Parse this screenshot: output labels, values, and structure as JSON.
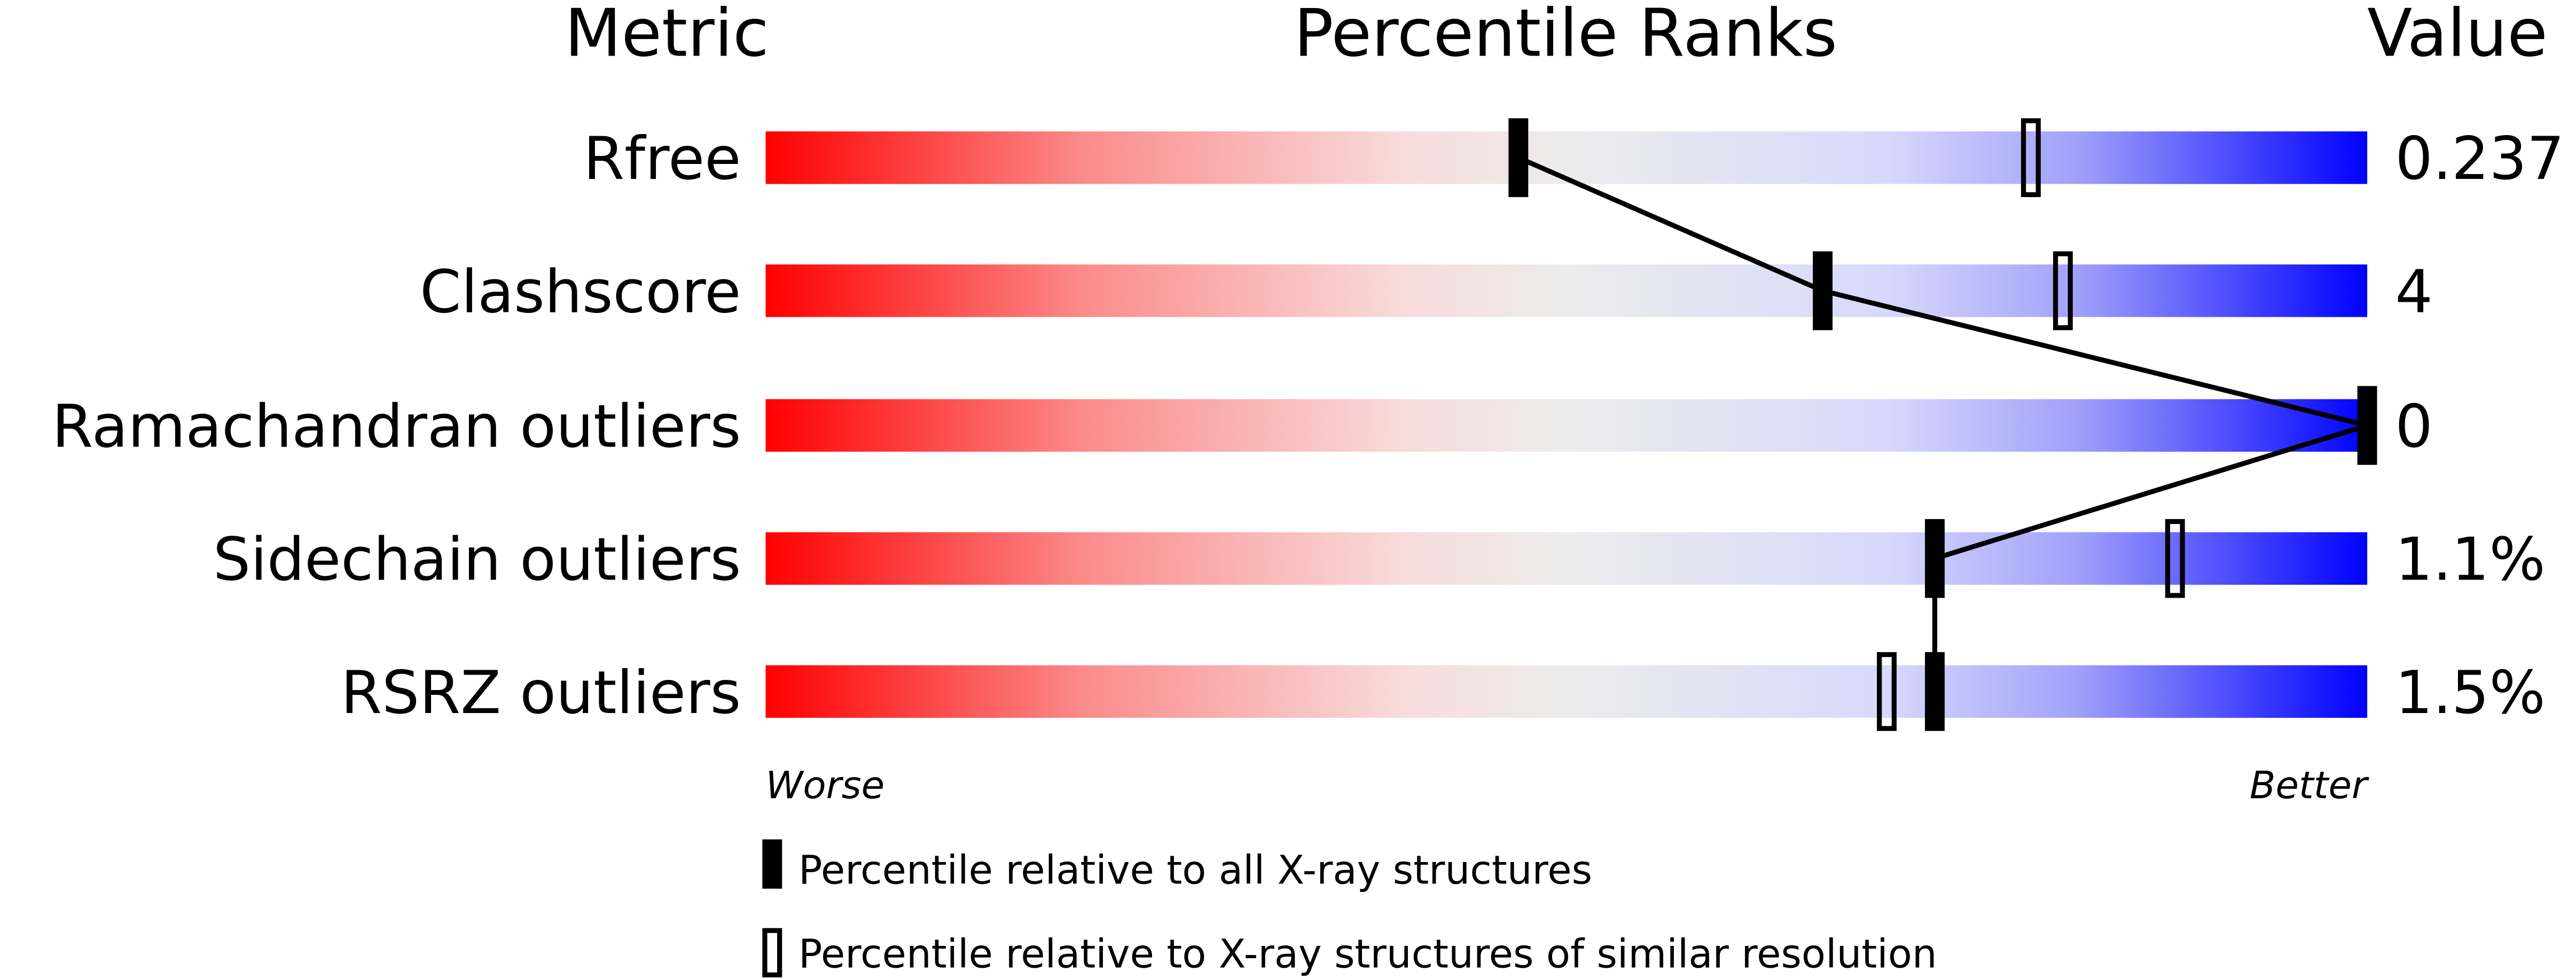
{
  "chart_data": {
    "type": "percentile-bar",
    "headers": {
      "metric": "Metric",
      "ranks": "Percentile Ranks",
      "value": "Value"
    },
    "xlim": [
      0,
      100
    ],
    "metrics": [
      {
        "name": "Rfree",
        "value": "0.237",
        "percentile_all": 47,
        "percentile_similar": 79
      },
      {
        "name": "Clashscore",
        "value": "4",
        "percentile_all": 66,
        "percentile_similar": 81
      },
      {
        "name": "Ramachandran outliers",
        "value": "0",
        "percentile_all": 100,
        "percentile_similar": null
      },
      {
        "name": "Sidechain outliers",
        "value": "1.1%",
        "percentile_all": 73,
        "percentile_similar": 88
      },
      {
        "name": "RSRZ outliers",
        "value": "1.5%",
        "percentile_all": 73,
        "percentile_similar": 70
      }
    ],
    "axis_labels": {
      "worse": "Worse",
      "better": "Better"
    },
    "legend": [
      {
        "marker": "filled",
        "label": "Percentile relative to all X-ray structures"
      },
      {
        "marker": "hollow",
        "label": "Percentile relative to X-ray structures of similar resolution"
      }
    ],
    "colors": {
      "worse": "#ff0000",
      "mid": "#eeeeee",
      "better": "#0000ff",
      "marker": "#000000"
    }
  }
}
